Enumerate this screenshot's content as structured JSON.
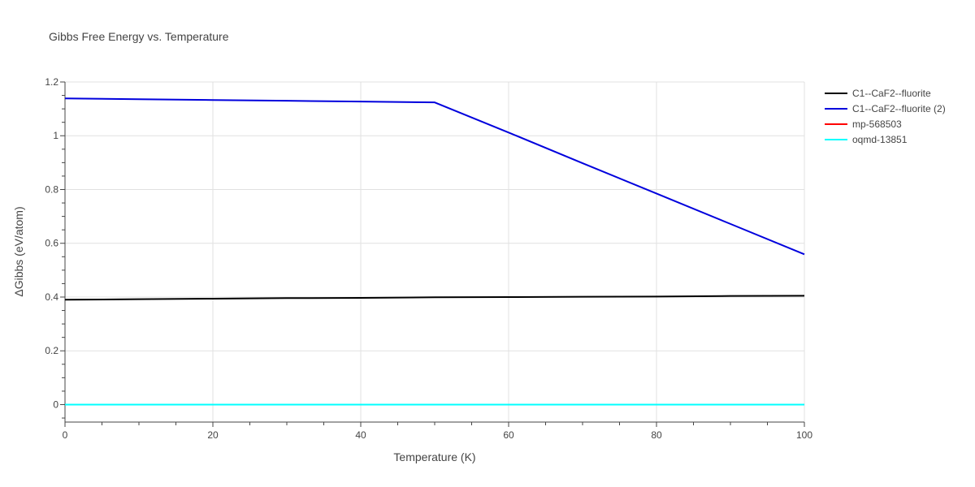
{
  "chart_data": {
    "type": "line",
    "title": "Gibbs Free Energy vs. Temperature",
    "xlabel": "Temperature (K)",
    "ylabel": "ΔGibbs (eV/atom)",
    "xlim": [
      0,
      100
    ],
    "ylim": [
      -0.065,
      1.2
    ],
    "x_ticks": [
      0,
      20,
      40,
      60,
      80,
      100
    ],
    "y_ticks": [
      0,
      0.2,
      0.4,
      0.6,
      0.8,
      1,
      1.2
    ],
    "x_tick_labels": [
      "0",
      "20",
      "40",
      "60",
      "80",
      "100"
    ],
    "y_tick_labels": [
      "0",
      "0.2",
      "0.4",
      "0.6",
      "0.8",
      "1",
      "1.2"
    ],
    "grid": true,
    "legend_position": "top-right",
    "series": [
      {
        "name": "C1--CaF2--fluorite",
        "color": "#000000",
        "x": [
          0,
          10,
          20,
          30,
          40,
          50,
          60,
          70,
          80,
          90,
          100
        ],
        "y": [
          0.39,
          0.392,
          0.394,
          0.396,
          0.397,
          0.399,
          0.4,
          0.401,
          0.402,
          0.404,
          0.405
        ]
      },
      {
        "name": "C1--CaF2--fluorite (2)",
        "color": "#0000dd",
        "x": [
          0,
          10,
          20,
          30,
          40,
          50,
          60,
          70,
          80,
          90,
          100
        ],
        "y": [
          1.139,
          1.136,
          1.133,
          1.13,
          1.127,
          1.124,
          1.012,
          0.898,
          0.785,
          0.672,
          0.559
        ]
      },
      {
        "name": "mp-568503",
        "color": "#ff0000",
        "x": [
          0,
          100
        ],
        "y": [
          0,
          0
        ]
      },
      {
        "name": "oqmd-13851",
        "color": "#00ffff",
        "x": [
          0,
          100
        ],
        "y": [
          0,
          0
        ]
      }
    ]
  }
}
